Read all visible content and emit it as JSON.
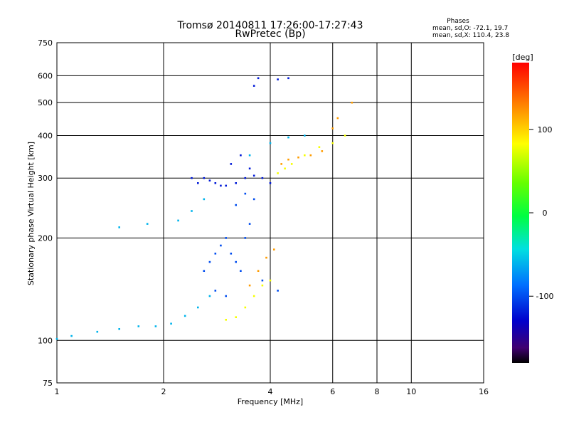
{
  "chart_data": {
    "type": "scatter",
    "title": "Tromsø 20140811 17:26:00-17:27:43",
    "subtitle": "RwPretec (Bp)",
    "xlabel": "Frequency [MHz]",
    "ylabel": "Stationary phase Virtual Height [km]",
    "x_scale": "log",
    "y_scale": "log",
    "xlim": [
      1,
      16
    ],
    "ylim": [
      75,
      750
    ],
    "x_ticks": [
      1,
      2,
      4,
      6,
      8,
      10,
      16
    ],
    "y_ticks": [
      75,
      100,
      200,
      300,
      400,
      500,
      600,
      750
    ],
    "grid": true,
    "legend": {
      "title": "Phases",
      "lines": [
        "mean, sd,O: -72.1, 19.7",
        "mean, sd,X: 110.4, 23.8"
      ]
    },
    "colorbar": {
      "label": "[deg]",
      "ticks": [
        100,
        0,
        -100
      ],
      "range": [
        -180,
        180
      ],
      "colormap": "rainbow"
    },
    "series": [
      {
        "color_value": -120,
        "x": [
          2.6,
          2.7,
          2.8,
          2.9,
          3.0,
          3.2,
          3.4,
          3.6,
          3.8,
          4.0,
          3.1,
          3.3,
          3.5,
          2.5,
          2.4,
          3.6,
          3.7,
          4.2,
          4.5
        ],
        "y": [
          300,
          295,
          290,
          285,
          285,
          290,
          300,
          305,
          300,
          290,
          330,
          350,
          320,
          290,
          300,
          560,
          590,
          585,
          590
        ]
      },
      {
        "color_value": -100,
        "x": [
          2.6,
          2.7,
          2.8,
          2.9,
          3.0,
          3.1,
          3.2,
          3.3,
          3.4,
          3.5,
          2.8,
          3.0,
          3.2,
          3.4,
          3.6,
          3.8,
          4.2
        ],
        "y": [
          160,
          170,
          180,
          190,
          200,
          180,
          170,
          160,
          200,
          220,
          140,
          135,
          250,
          270,
          260,
          150,
          140
        ]
      },
      {
        "color_value": -60,
        "x": [
          1.0,
          1.1,
          1.3,
          1.5,
          1.7,
          1.9,
          2.1,
          2.3,
          2.5,
          2.7,
          1.5,
          1.8,
          2.2,
          2.4,
          2.6,
          3.5,
          4.0,
          4.5,
          5.0
        ],
        "y": [
          101,
          103,
          106,
          108,
          110,
          110,
          112,
          118,
          125,
          135,
          215,
          220,
          225,
          240,
          260,
          350,
          380,
          395,
          400
        ]
      },
      {
        "color_value": 80,
        "x": [
          3.0,
          3.2,
          3.4,
          3.6,
          3.8,
          4.0,
          4.2,
          4.4,
          4.6,
          5.0,
          5.5,
          6.0,
          6.5
        ],
        "y": [
          115,
          117,
          125,
          135,
          145,
          150,
          310,
          320,
          330,
          350,
          370,
          380,
          400
        ]
      },
      {
        "color_value": 120,
        "x": [
          3.5,
          3.7,
          3.9,
          4.1,
          4.3,
          4.5,
          4.8,
          5.2,
          5.6,
          6.0,
          6.2,
          6.8
        ],
        "y": [
          145,
          160,
          175,
          185,
          330,
          340,
          345,
          350,
          360,
          420,
          450,
          500
        ]
      }
    ]
  }
}
